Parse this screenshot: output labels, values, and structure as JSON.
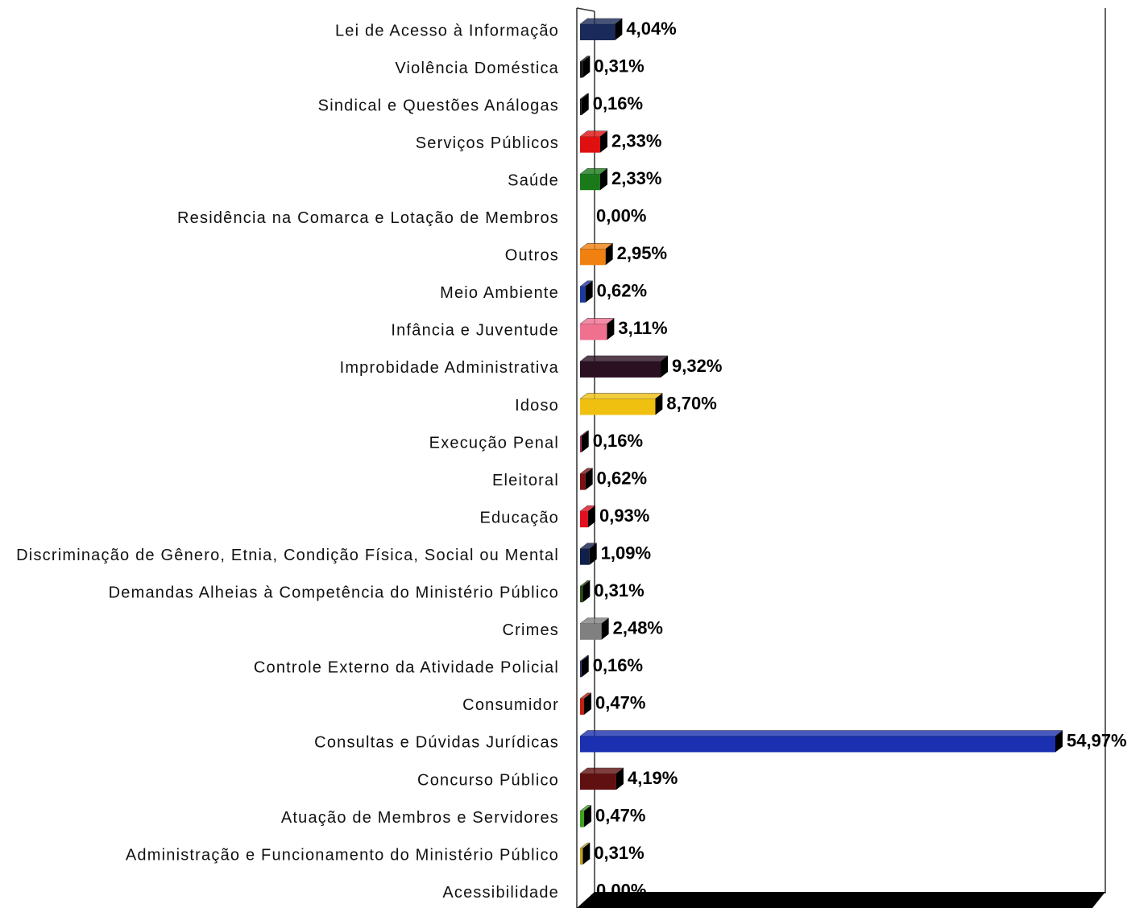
{
  "chart_data": {
    "type": "bar",
    "orientation": "horizontal",
    "categories": [
      "Lei de Acesso à Informação",
      "Violência Doméstica",
      "Sindical e Questões Análogas",
      "Serviços Públicos",
      "Saúde",
      "Residência na Comarca e Lotação de Membros",
      "Outros",
      "Meio Ambiente",
      "Infância e Juventude",
      "Improbidade Administrativa",
      "Idoso",
      "Execução Penal",
      "Eleitoral",
      "Educação",
      "Discriminação de Gênero, Etnia, Condição Física, Social ou Mental",
      "Demandas Alheias à Competência do Ministério Público",
      "Crimes",
      "Controle Externo da Atividade Policial",
      "Consumidor",
      "Consultas e Dúvidas Jurídicas",
      "Concurso Público",
      "Atuação de Membros e Servidores",
      "Administração e Funcionamento do Ministério Público",
      "Acessibilidade"
    ],
    "values": [
      4.04,
      0.31,
      0.16,
      2.33,
      2.33,
      0.0,
      2.95,
      0.62,
      3.11,
      9.32,
      8.7,
      0.16,
      0.62,
      0.93,
      1.09,
      0.31,
      2.48,
      0.16,
      0.47,
      54.97,
      4.19,
      0.47,
      0.31,
      0.0
    ],
    "value_labels": [
      "4,04%",
      "0,31%",
      "0,16%",
      "2,33%",
      "2,33%",
      "0,00%",
      "2,95%",
      "0,62%",
      "3,11%",
      "9,32%",
      "8,70%",
      "0,16%",
      "0,62%",
      "0,93%",
      "1,09%",
      "0,31%",
      "2,48%",
      "0,16%",
      "0,47%",
      "54,97%",
      "4,19%",
      "0,47%",
      "0,31%",
      "0,00%"
    ],
    "colors": [
      "#1a2a5a",
      "#151515",
      "#151515",
      "#e01010",
      "#1a7a1a",
      "#444444",
      "#f08010",
      "#1a3aa0",
      "#f07090",
      "#2a1020",
      "#f0c010",
      "#a02050",
      "#801010",
      "#e01020",
      "#10204a",
      "#2a4a10",
      "#808080",
      "#202860",
      "#c02010",
      "#1a30b0",
      "#601010",
      "#40a020",
      "#c0a020",
      "#444444"
    ]
  }
}
